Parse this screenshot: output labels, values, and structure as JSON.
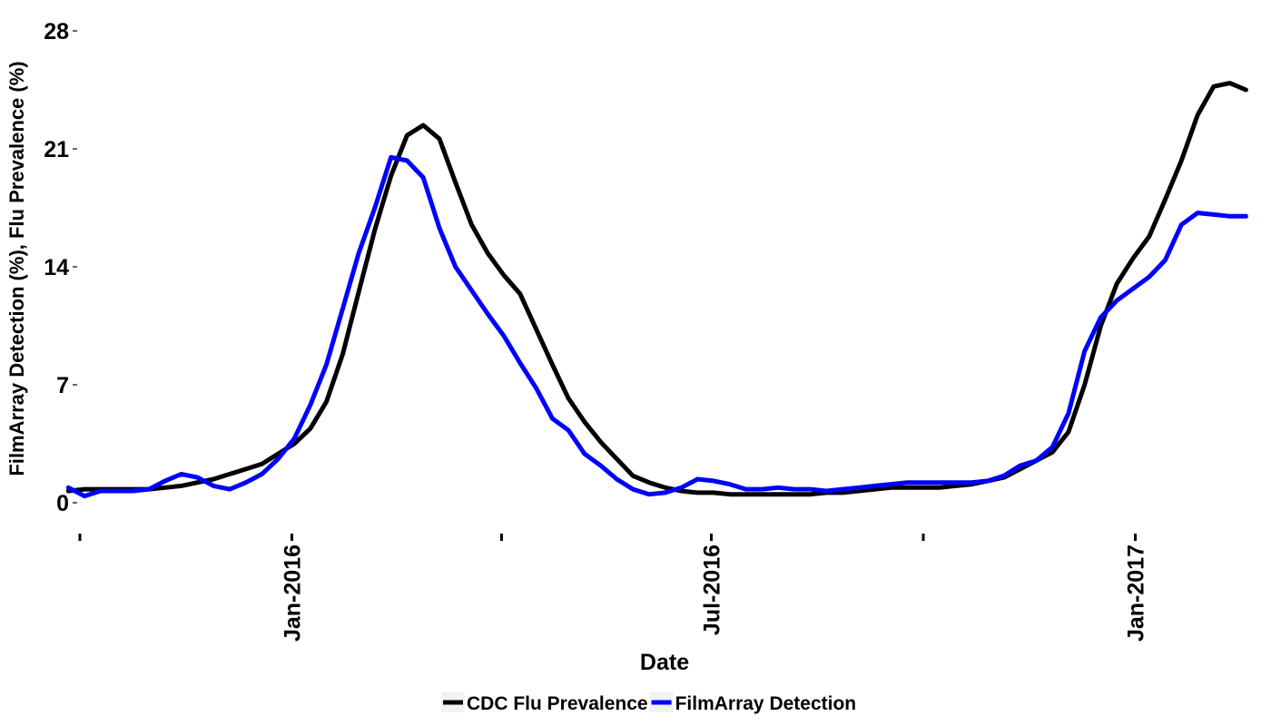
{
  "chart_data": {
    "type": "line",
    "title": "",
    "xlabel": "Date",
    "ylabel": "FilmArray Detection (%), Flu Prevalence (%)",
    "ylim": [
      0,
      28
    ],
    "yticks": [
      0,
      7,
      14,
      21,
      28
    ],
    "xlim": [
      "2015-10-01",
      "2017-02-21"
    ],
    "xticks": [
      {
        "date": "2015-10-01",
        "label": ""
      },
      {
        "date": "2016-01-01",
        "label": "Jan-2016"
      },
      {
        "date": "2016-04-01",
        "label": ""
      },
      {
        "date": "2016-07-01",
        "label": "Jul-2016"
      },
      {
        "date": "2016-10-01",
        "label": ""
      },
      {
        "date": "2017-01-01",
        "label": "Jan-2017"
      }
    ],
    "grid": false,
    "legend_position": "bottom",
    "series": [
      {
        "name": "CDC Flu Prevalence",
        "color": "#000000",
        "x": [
          "2015-09-26",
          "2015-10-03",
          "2015-10-10",
          "2015-10-17",
          "2015-10-24",
          "2015-10-31",
          "2015-11-07",
          "2015-11-14",
          "2015-11-21",
          "2015-11-28",
          "2015-12-05",
          "2015-12-12",
          "2015-12-19",
          "2015-12-26",
          "2016-01-02",
          "2016-01-09",
          "2016-01-16",
          "2016-01-23",
          "2016-01-30",
          "2016-02-06",
          "2016-02-13",
          "2016-02-20",
          "2016-02-27",
          "2016-03-05",
          "2016-03-12",
          "2016-03-19",
          "2016-03-26",
          "2016-04-02",
          "2016-04-09",
          "2016-04-16",
          "2016-04-23",
          "2016-04-30",
          "2016-05-07",
          "2016-05-14",
          "2016-05-21",
          "2016-05-28",
          "2016-06-04",
          "2016-06-11",
          "2016-06-18",
          "2016-06-25",
          "2016-07-02",
          "2016-07-09",
          "2016-07-16",
          "2016-07-23",
          "2016-07-30",
          "2016-08-06",
          "2016-08-13",
          "2016-08-20",
          "2016-08-27",
          "2016-09-03",
          "2016-09-10",
          "2016-09-17",
          "2016-09-24",
          "2016-10-01",
          "2016-10-08",
          "2016-10-15",
          "2016-10-22",
          "2016-10-29",
          "2016-11-05",
          "2016-11-12",
          "2016-11-19",
          "2016-11-26",
          "2016-12-03",
          "2016-12-10",
          "2016-12-17",
          "2016-12-24",
          "2016-12-31",
          "2017-01-07",
          "2017-01-14",
          "2017-01-21",
          "2017-01-28",
          "2017-02-04",
          "2017-02-11",
          "2017-02-18"
        ],
        "values": [
          0.7,
          0.8,
          0.8,
          0.8,
          0.8,
          0.8,
          0.9,
          1.0,
          1.2,
          1.4,
          1.7,
          2.0,
          2.3,
          2.9,
          3.5,
          4.4,
          6.0,
          8.8,
          12.5,
          16.2,
          19.4,
          21.8,
          22.4,
          21.6,
          19.0,
          16.5,
          14.8,
          13.5,
          12.4,
          10.3,
          8.2,
          6.2,
          4.8,
          3.6,
          2.6,
          1.6,
          1.2,
          0.9,
          0.7,
          0.6,
          0.6,
          0.5,
          0.5,
          0.5,
          0.5,
          0.5,
          0.5,
          0.6,
          0.6,
          0.7,
          0.8,
          0.9,
          0.9,
          0.9,
          0.9,
          1.0,
          1.1,
          1.3,
          1.5,
          2.0,
          2.5,
          3.0,
          4.2,
          7.0,
          10.5,
          13.0,
          14.5,
          15.8,
          18.0,
          20.3,
          23.0,
          24.7,
          24.9,
          24.5
        ]
      },
      {
        "name": "FilmArray Detection",
        "color": "#0000ff",
        "x": [
          "2015-09-26",
          "2015-10-03",
          "2015-10-10",
          "2015-10-17",
          "2015-10-24",
          "2015-10-31",
          "2015-11-07",
          "2015-11-14",
          "2015-11-21",
          "2015-11-28",
          "2015-12-05",
          "2015-12-12",
          "2015-12-19",
          "2015-12-26",
          "2016-01-02",
          "2016-01-09",
          "2016-01-16",
          "2016-01-23",
          "2016-01-30",
          "2016-02-06",
          "2016-02-13",
          "2016-02-20",
          "2016-02-27",
          "2016-03-05",
          "2016-03-12",
          "2016-03-19",
          "2016-03-26",
          "2016-04-02",
          "2016-04-09",
          "2016-04-16",
          "2016-04-23",
          "2016-04-30",
          "2016-05-07",
          "2016-05-14",
          "2016-05-21",
          "2016-05-28",
          "2016-06-04",
          "2016-06-11",
          "2016-06-18",
          "2016-06-25",
          "2016-07-02",
          "2016-07-09",
          "2016-07-16",
          "2016-07-23",
          "2016-07-30",
          "2016-08-06",
          "2016-08-13",
          "2016-08-20",
          "2016-08-27",
          "2016-09-03",
          "2016-09-10",
          "2016-09-17",
          "2016-09-24",
          "2016-10-01",
          "2016-10-08",
          "2016-10-15",
          "2016-10-22",
          "2016-10-29",
          "2016-11-05",
          "2016-11-12",
          "2016-11-19",
          "2016-11-26",
          "2016-12-03",
          "2016-12-10",
          "2016-12-17",
          "2016-12-24",
          "2016-12-31",
          "2017-01-07",
          "2017-01-14",
          "2017-01-21",
          "2017-01-28",
          "2017-02-04",
          "2017-02-11",
          "2017-02-18"
        ],
        "values": [
          0.9,
          0.4,
          0.7,
          0.7,
          0.7,
          0.8,
          1.3,
          1.7,
          1.5,
          1.0,
          0.8,
          1.2,
          1.7,
          2.6,
          3.8,
          5.8,
          8.2,
          11.5,
          14.8,
          17.5,
          20.5,
          20.3,
          19.3,
          16.3,
          14.0,
          12.6,
          11.2,
          9.9,
          8.3,
          6.8,
          5.0,
          4.3,
          2.9,
          2.2,
          1.4,
          0.8,
          0.5,
          0.6,
          0.9,
          1.4,
          1.3,
          1.1,
          0.8,
          0.8,
          0.9,
          0.8,
          0.8,
          0.7,
          0.8,
          0.9,
          1.0,
          1.1,
          1.2,
          1.2,
          1.2,
          1.2,
          1.2,
          1.3,
          1.6,
          2.2,
          2.5,
          3.3,
          5.3,
          9.0,
          11.0,
          12.0,
          12.7,
          13.4,
          14.4,
          16.5,
          17.2,
          17.1,
          17.0,
          17.0
        ]
      }
    ]
  }
}
